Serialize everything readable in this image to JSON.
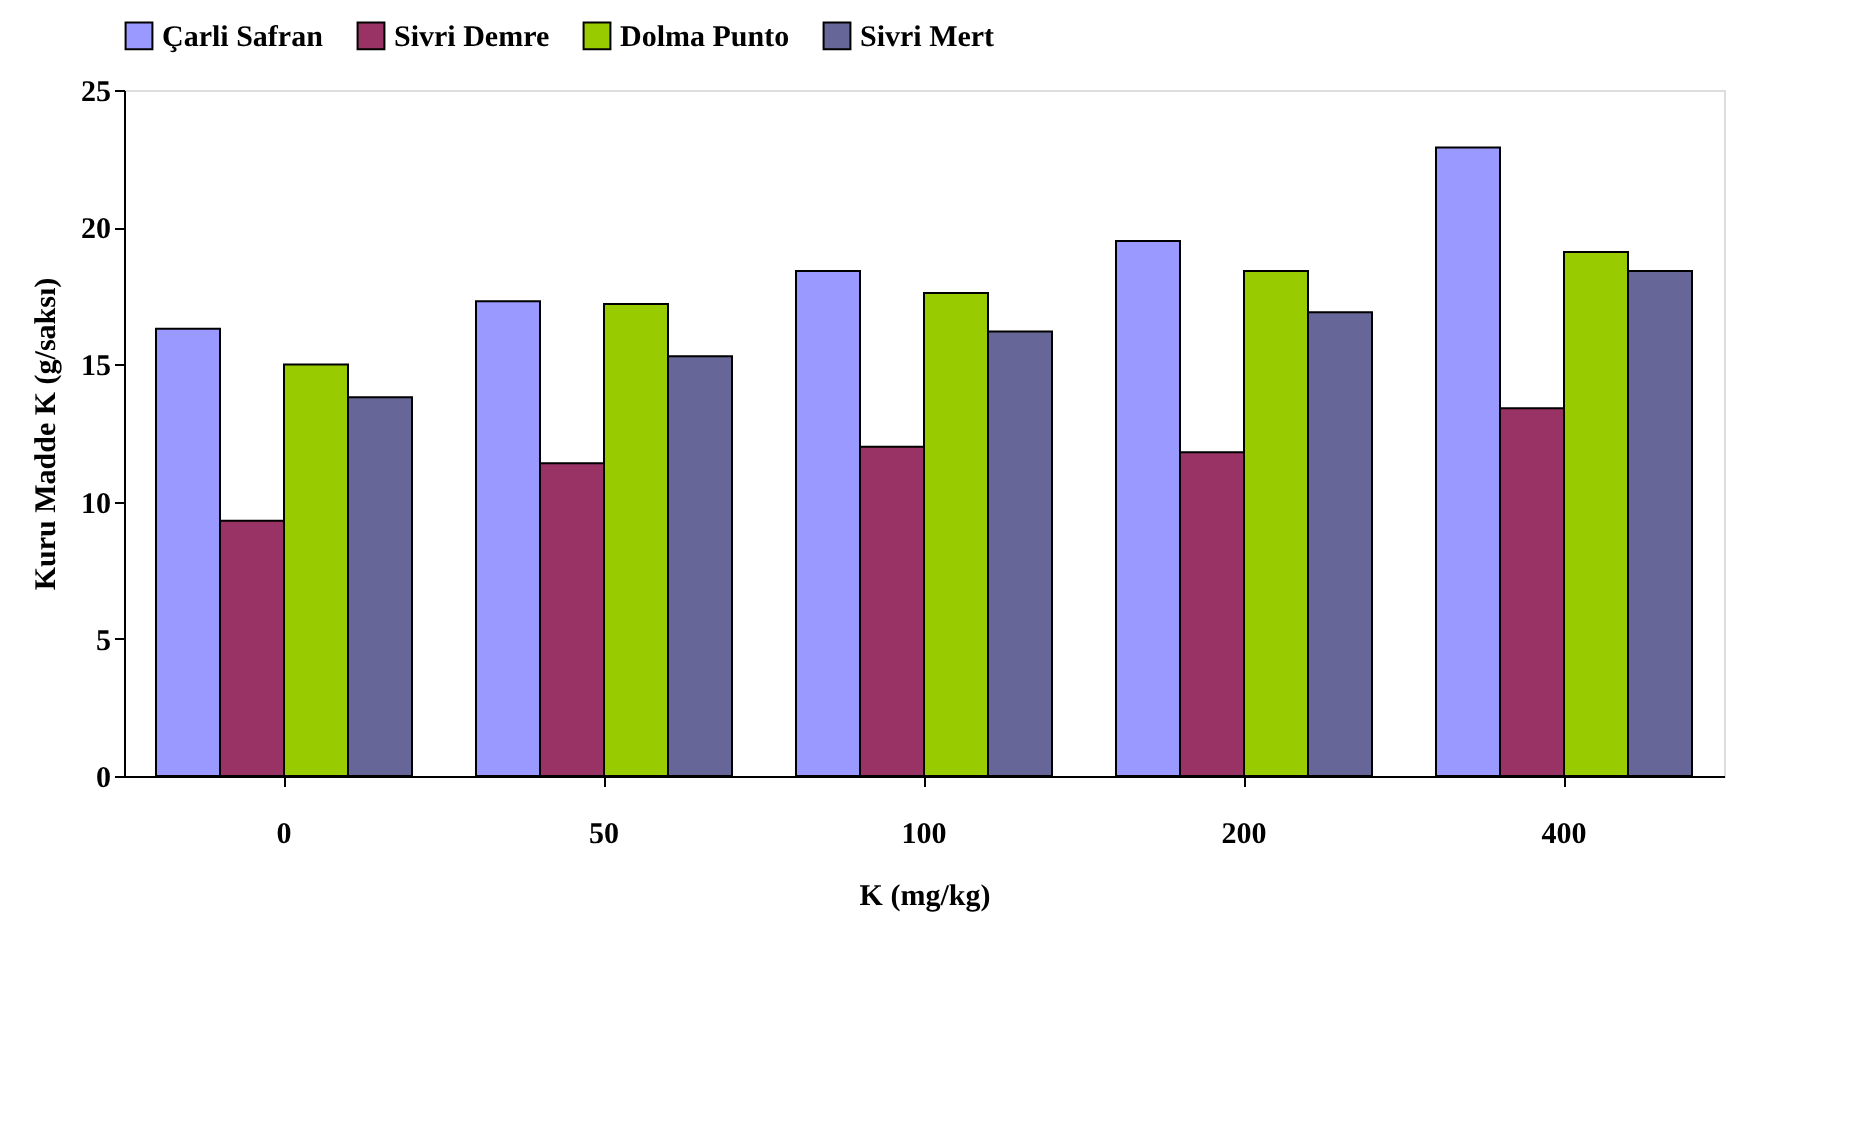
{
  "chart_data": {
    "type": "bar",
    "xlabel": "K (mg/kg)",
    "ylabel": "Kuru Madde K (g/saksı)",
    "categories": [
      "0",
      "50",
      "100",
      "200",
      "400"
    ],
    "series": [
      {
        "name": "Çarli Safran",
        "color": "#9999ff",
        "values": [
          16.3,
          17.3,
          18.4,
          19.5,
          22.9
        ]
      },
      {
        "name": "Sivri Demre",
        "color": "#993366",
        "values": [
          9.3,
          11.4,
          12.0,
          11.8,
          13.4
        ]
      },
      {
        "name": "Dolma Punto",
        "color": "#99cc00",
        "values": [
          15.0,
          17.2,
          17.6,
          18.4,
          19.1
        ]
      },
      {
        "name": "Sivri Mert",
        "color": "#666699",
        "values": [
          13.8,
          15.3,
          16.2,
          16.9,
          18.4
        ]
      }
    ],
    "ylim": [
      0,
      25
    ],
    "yticks": [
      0,
      5,
      10,
      15,
      20,
      25
    ],
    "grid": false,
    "legend": "top"
  }
}
